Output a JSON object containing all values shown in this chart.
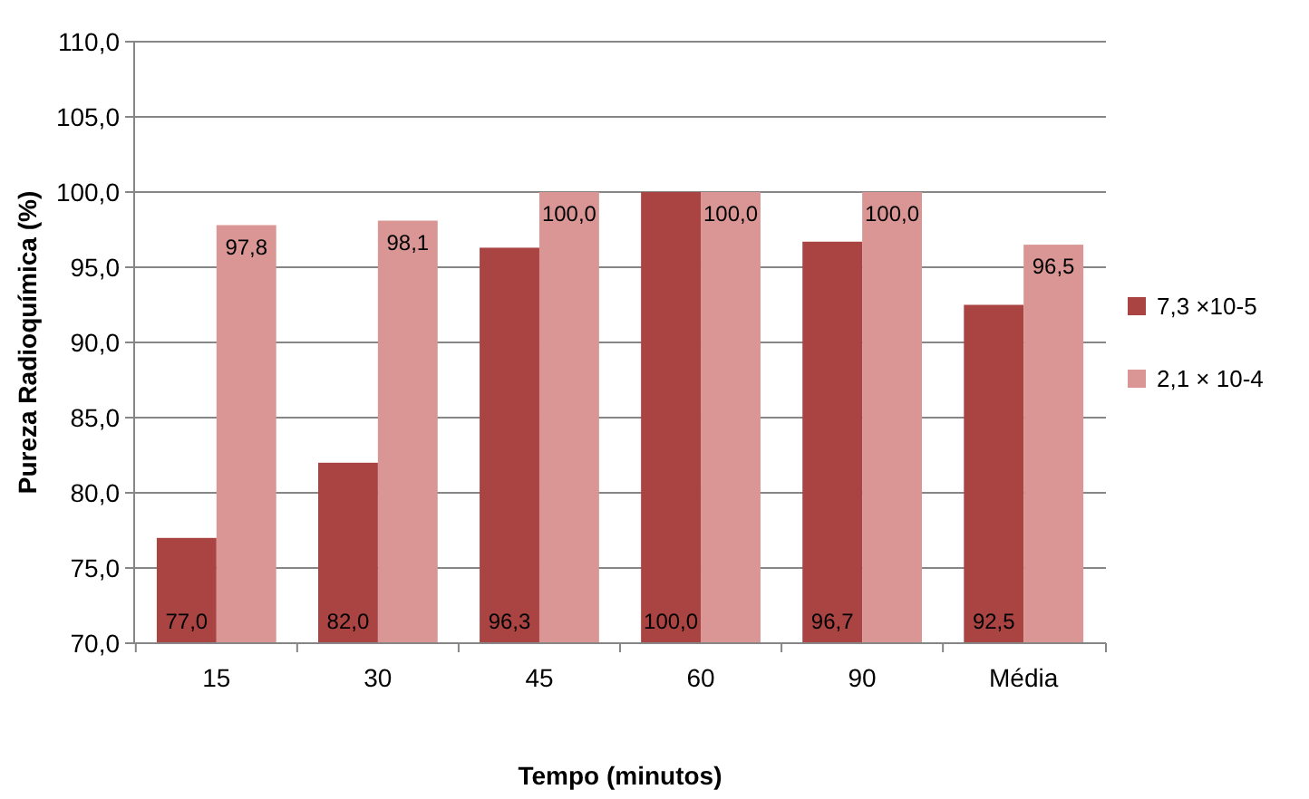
{
  "chart_data": {
    "type": "bar",
    "xlabel": "Tempo (minutos)",
    "ylabel": "Pureza Radioquímica (%)",
    "categories": [
      "15",
      "30",
      "45",
      "60",
      "90",
      "Média"
    ],
    "series": [
      {
        "name": "7,3 ×10-5",
        "color": "#a94442",
        "values": [
          77.0,
          82.0,
          96.3,
          100.0,
          96.7,
          92.5
        ],
        "value_labels": [
          "77,0",
          "82,0",
          "96,3",
          "100,0",
          "96,7",
          "92,5"
        ]
      },
      {
        "name": "2,1 × 10-4",
        "color": "#d99694",
        "values": [
          97.8,
          98.1,
          100.0,
          100.0,
          100.0,
          96.5
        ],
        "value_labels": [
          "97,8",
          "98,1",
          "100,0",
          "100,0",
          "100,0",
          "96,5"
        ]
      }
    ],
    "ylim": [
      70,
      110
    ],
    "yticks": [
      {
        "value": 70,
        "label": "70,0"
      },
      {
        "value": 75,
        "label": "75,0"
      },
      {
        "value": 80,
        "label": "80,0"
      },
      {
        "value": 85,
        "label": "85,0"
      },
      {
        "value": 90,
        "label": "90,0"
      },
      {
        "value": 95,
        "label": "95,0"
      },
      {
        "value": 100,
        "label": "100,0"
      },
      {
        "value": 105,
        "label": "105,0"
      },
      {
        "value": 110,
        "label": "110,0"
      }
    ],
    "grid": "y",
    "legend": "right"
  }
}
